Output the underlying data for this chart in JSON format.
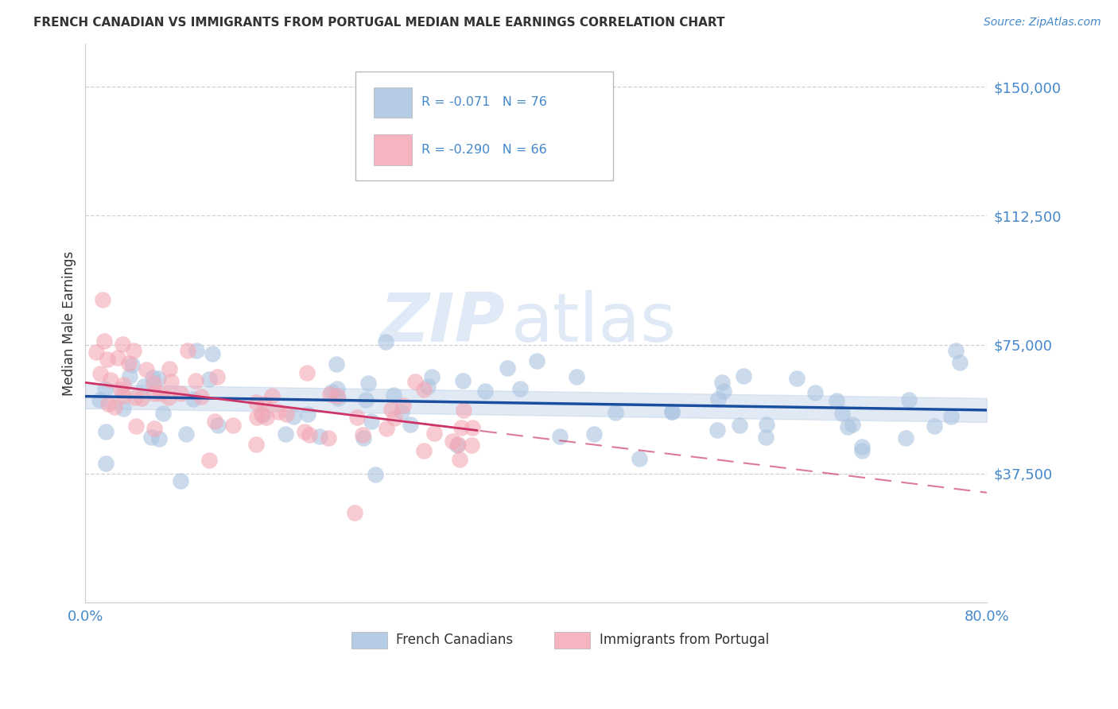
{
  "title": "FRENCH CANADIAN VS IMMIGRANTS FROM PORTUGAL MEDIAN MALE EARNINGS CORRELATION CHART",
  "source": "Source: ZipAtlas.com",
  "ylabel": "Median Male Earnings",
  "watermark_zip": "ZIP",
  "watermark_atlas": "atlas",
  "legend_entries": [
    "French Canadians",
    "Immigrants from Portugal"
  ],
  "R_blue": -0.071,
  "N_blue": 76,
  "R_pink": -0.29,
  "N_pink": 66,
  "xlim": [
    0.0,
    0.8
  ],
  "ylim": [
    0,
    162500
  ],
  "ytick_vals": [
    0,
    37500,
    75000,
    112500,
    150000
  ],
  "ytick_labels": [
    "",
    "$37,500",
    "$75,000",
    "$112,500",
    "$150,000"
  ],
  "xtick_vals": [
    0.0,
    0.1,
    0.2,
    0.3,
    0.4,
    0.5,
    0.6,
    0.7,
    0.8
  ],
  "blue_color": "#aac4e0",
  "pink_color": "#f4a7b5",
  "blue_line_color": "#1a4fa0",
  "pink_line_color": "#cc3366",
  "axis_color": "#4488cc",
  "text_color": "#333333",
  "grid_color": "#cccccc",
  "background_color": "#ffffff",
  "blue_regression_intercept": 60000,
  "blue_regression_slope": -5000,
  "pink_regression_intercept": 64000,
  "pink_regression_slope": -40000
}
